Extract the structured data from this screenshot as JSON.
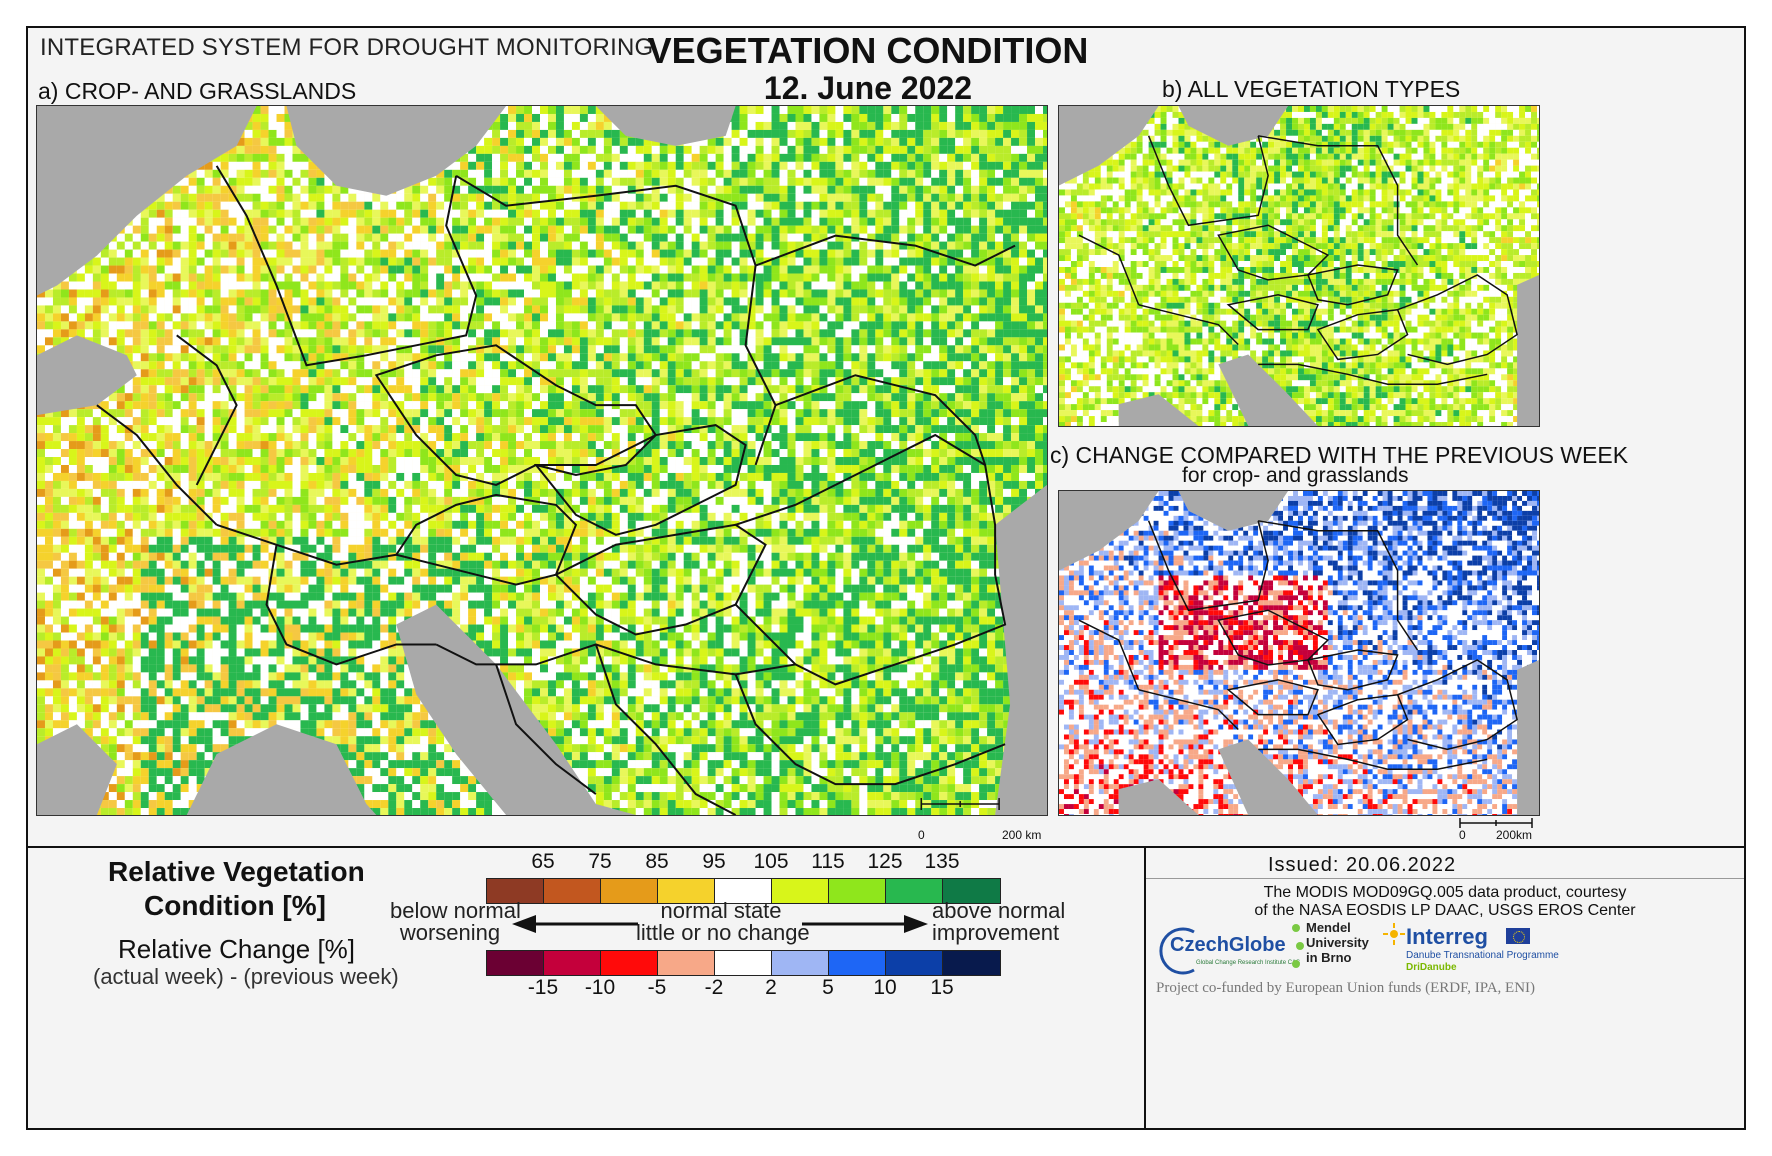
{
  "header": {
    "system": "INTEGRATED SYSTEM FOR DROUGHT MONITORING",
    "title": "VEGETATION CONDITION",
    "date": "12. June 2022"
  },
  "panels": {
    "a": {
      "label": "a) CROP- AND GRASSLANDS",
      "scale_zero": "0",
      "scale_end": "200 km"
    },
    "b": {
      "label": "b) ALL VEGETATION TYPES"
    },
    "c": {
      "label": "c) CHANGE COMPARED WITH THE PREVIOUS WEEK",
      "sublabel": "for crop- and grasslands",
      "scale_zero": "0",
      "scale_end": "200km"
    }
  },
  "legend": {
    "rvc_title_line1": "Relative Vegetation",
    "rvc_title_line2": "Condition [%]",
    "rc_title": "Relative Change [%]",
    "rc_sub": "(actual week) - (previous week)",
    "rvc_ticks": [
      "65",
      "75",
      "85",
      "95",
      "105",
      "115",
      "125",
      "135"
    ],
    "rc_ticks": [
      "-15",
      "-10",
      "-5",
      "-2",
      "2",
      "5",
      "10",
      "15"
    ],
    "rvc_colors": [
      "#8e3a24",
      "#c2571f",
      "#e59b1a",
      "#f5d22c",
      "#ffffff",
      "#d8f51a",
      "#8fe61c",
      "#28b84f",
      "#0f7a46"
    ],
    "rc_colors": [
      "#6b0033",
      "#c4003b",
      "#ff0a0a",
      "#f7a888",
      "#ffffff",
      "#9fb6f4",
      "#1e66f5",
      "#0c3fa8",
      "#081a4d"
    ],
    "left_top": "below normal",
    "left_bottom": "worsening",
    "mid_top": "normal state",
    "mid_bottom": "little or no change",
    "right_top": "above normal",
    "right_bottom": "improvement"
  },
  "footer": {
    "issued": "Issued: 20.06.2022",
    "credit_line1": "The MODIS MOD09GQ.005 data product, courtesy",
    "credit_line2": "of the NASA EOSDIS LP DAAC, USGS EROS Center",
    "logo_czechglobe": "CzechGlobe",
    "logo_czechglobe_sub": "Global Change Research Institute CAS",
    "logo_mendel": "Mendel University in Brno",
    "logo_interreg": "Interreg",
    "logo_interreg_sub": "Danube Transnational Programme",
    "logo_dridanube": "DriDanube",
    "cofund": "Project co-funded by European Union funds (ERDF, IPA, ENI)"
  }
}
